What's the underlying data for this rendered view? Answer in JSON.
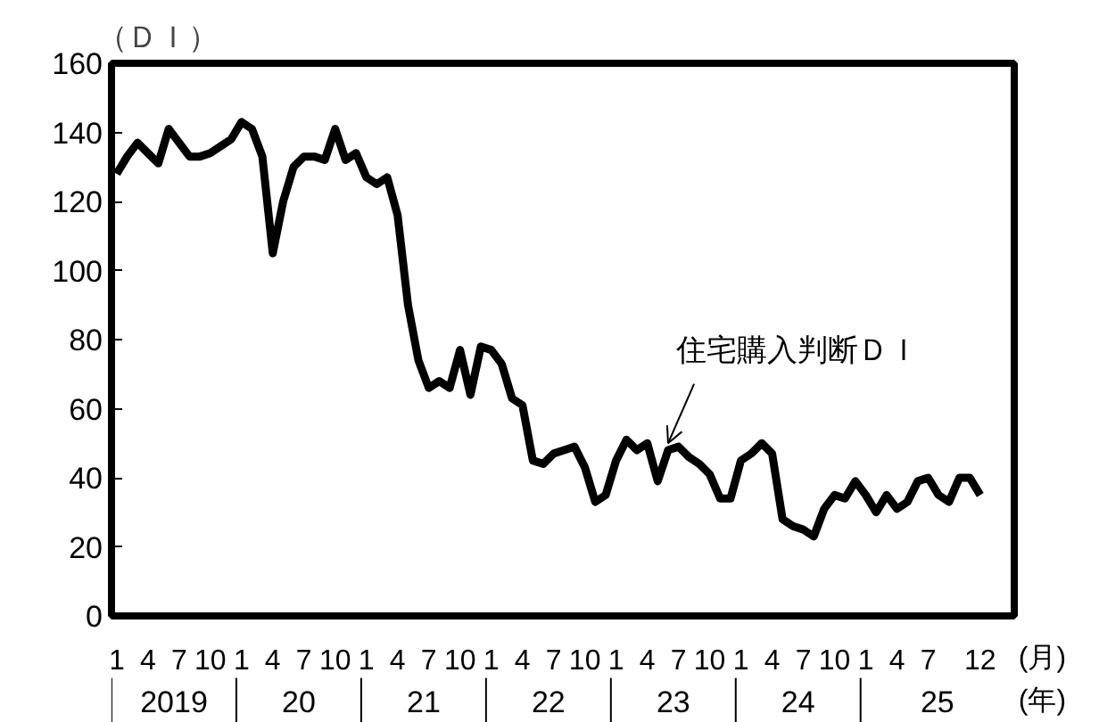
{
  "chart_data": {
    "type": "line",
    "ylabel": "（ＤＩ）",
    "xlabel": "(月)",
    "categories": [
      "1",
      null,
      null,
      "4",
      null,
      null,
      "7",
      null,
      null,
      "10",
      null,
      null,
      "1",
      null,
      null,
      "4",
      null,
      null,
      "7",
      null,
      null,
      "10",
      null,
      null,
      "1",
      null,
      null,
      "4",
      null,
      null,
      "7",
      null,
      null,
      "10",
      null,
      null,
      "1",
      null,
      null,
      "4",
      null,
      null,
      "7",
      null,
      null,
      "10",
      null,
      null,
      "1",
      null,
      null,
      "4",
      null,
      null,
      "7",
      null,
      null,
      "10",
      null,
      null,
      "1",
      null,
      null,
      "4",
      null,
      null,
      "7",
      null,
      null,
      "10",
      null,
      null,
      "1",
      null,
      null,
      "4",
      null,
      null,
      "7",
      null,
      null,
      null,
      null,
      "12"
    ],
    "series": [
      {
        "name": "住宅購入判断ＤＩ",
        "color": "#000000",
        "values": [
          128,
          133,
          137,
          134,
          131,
          141,
          137,
          133,
          133,
          134,
          136,
          138,
          143,
          141,
          133,
          105,
          120,
          130,
          133,
          133,
          132,
          141,
          132,
          134,
          127,
          125,
          127,
          116,
          90,
          74,
          66,
          68,
          66,
          77,
          64,
          78,
          77,
          73,
          63,
          61,
          45,
          44,
          47,
          48,
          49,
          43,
          33,
          35,
          45,
          51,
          48,
          50,
          39,
          48,
          49,
          46,
          44,
          41,
          34,
          34,
          45,
          47,
          50,
          47,
          28,
          26,
          25,
          23,
          31,
          35,
          34,
          39,
          35,
          30,
          35,
          31,
          33,
          39,
          40,
          35,
          33,
          40,
          40,
          35
        ]
      }
    ],
    "ylim": [
      0,
      160
    ],
    "yticks": [
      0,
      20,
      40,
      60,
      80,
      100,
      120,
      140,
      160
    ],
    "annotations": [
      "2019",
      "20",
      "21",
      "22",
      "23",
      "24",
      "25",
      "(年)"
    ]
  }
}
